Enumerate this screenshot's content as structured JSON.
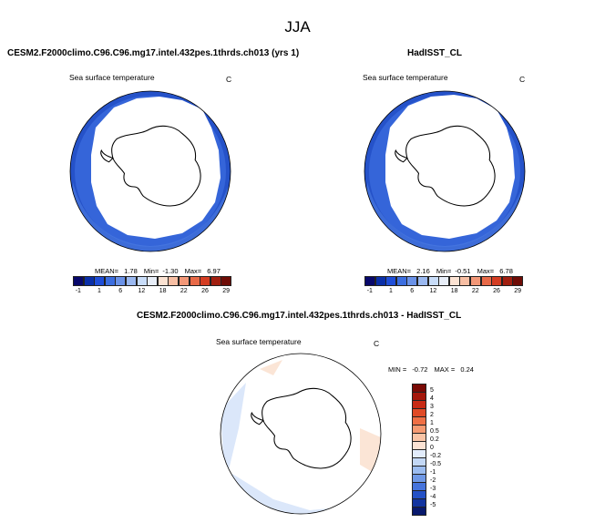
{
  "figure": {
    "title": "JJA"
  },
  "panels": [
    {
      "id": "model",
      "title": "CESM2.F2000climo.C96.C96.mg17.intel.432pes.1thrds.ch013 (yrs 1)",
      "variable": "Sea surface temperature",
      "units": "C",
      "stats": {
        "mean_label": "MEAN=",
        "mean": "1.78",
        "min_label": "Min=",
        "min": "-1.30",
        "max_label": "Max=",
        "max": "6.97"
      }
    },
    {
      "id": "obs",
      "title": "HadISST_CL",
      "variable": "Sea surface temperature",
      "units": "C",
      "stats": {
        "mean_label": "MEAN=",
        "mean": "2.16",
        "min_label": "Min=",
        "min": "-0.51",
        "max_label": "Max=",
        "max": "6.78"
      }
    },
    {
      "id": "diff",
      "title": "CESM2.F2000climo.C96.C96.mg17.intel.432pes.1thrds.ch013 - HadISST_CL",
      "variable": "Sea surface temperature",
      "units": "C",
      "stats": {
        "min_label": "MIN =",
        "min": "-0.72",
        "max_label": "MAX =",
        "max": "0.24"
      }
    }
  ],
  "colorbars": {
    "field": {
      "labels": [
        "-1",
        "1",
        "6",
        "12",
        "18",
        "22",
        "26",
        "29"
      ],
      "colors": [
        "#08086b",
        "#0a2fa8",
        "#1f4ed8",
        "#3c6ee0",
        "#6a92e8",
        "#9ab8f0",
        "#c8dcf8",
        "#e8eef8",
        "#fbe2d2",
        "#f7bea3",
        "#f29777",
        "#e86a48",
        "#d43d22",
        "#a11f10",
        "#6e0c06"
      ]
    },
    "diff": {
      "labels": [
        "5",
        "4",
        "3",
        "2",
        "1",
        "0.5",
        "0.2",
        "0",
        "-0.2",
        "-0.5",
        "-1",
        "-2",
        "-3",
        "-4",
        "-5"
      ],
      "colors": [
        "#7a0a05",
        "#a5170b",
        "#c82a14",
        "#e04a26",
        "#ef6f45",
        "#f59a72",
        "#f9c4a6",
        "#fbe2d3",
        "#e2ecfb",
        "#c3d8f6",
        "#9bbcf0",
        "#6f98e6",
        "#4674dc",
        "#2451c6",
        "#1234a0",
        "#08196d"
      ]
    }
  },
  "colors": {
    "ocean_main": "#2f5fd6",
    "ocean_light": "#5f88e4",
    "diff_light_blue": "#dbe7fa",
    "diff_light_orange": "#fbe5d6",
    "land": "#ffffff"
  }
}
